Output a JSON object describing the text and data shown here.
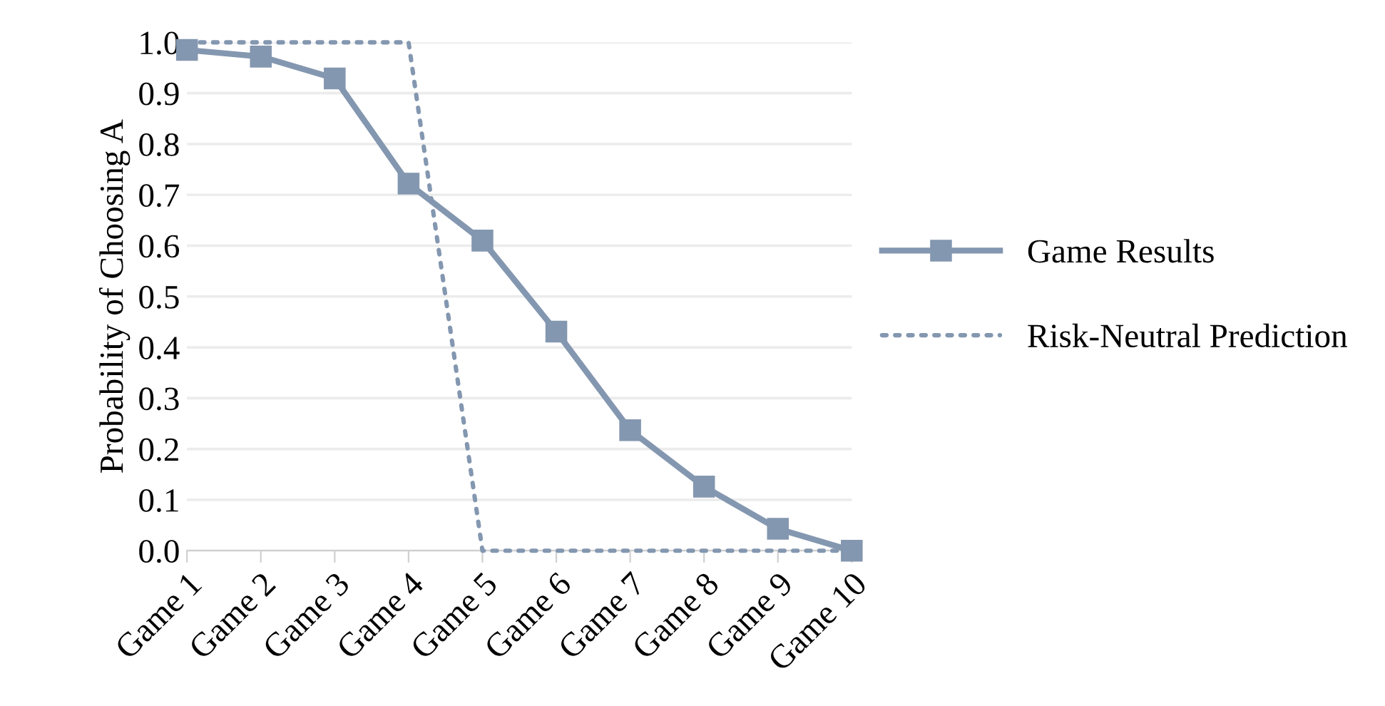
{
  "chart_data": {
    "type": "line",
    "ylabel": "Probability of Choosing A",
    "categories": [
      "Game 1",
      "Game 2",
      "Game 3",
      "Game 4",
      "Game 5",
      "Game 6",
      "Game 7",
      "Game 8",
      "Game 9",
      "Game 10"
    ],
    "series": [
      {
        "name": "Game Results",
        "color": "#8497b0",
        "marker": "square",
        "line_style": "solid",
        "values": [
          0.985,
          0.972,
          0.929,
          0.722,
          0.61,
          0.431,
          0.237,
          0.126,
          0.043,
          0.0
        ]
      },
      {
        "name": "Risk-Neutral Prediction",
        "color": "#8497b0",
        "marker": "none",
        "line_style": "dotted",
        "values": [
          1.0,
          1.0,
          1.0,
          1.0,
          0.0,
          0.0,
          0.0,
          0.0,
          0.0,
          0.0
        ]
      }
    ],
    "ylim": [
      0,
      1.0
    ],
    "yticks": [
      {
        "value": 0,
        "label": "0.0"
      },
      {
        "value": 0.1,
        "label": "0.1"
      },
      {
        "value": 0.2,
        "label": "0.2"
      },
      {
        "value": 0.3,
        "label": "0.3"
      },
      {
        "value": 0.4,
        "label": "0.4"
      },
      {
        "value": 0.5,
        "label": "0.5"
      },
      {
        "value": 0.6,
        "label": "0.6"
      },
      {
        "value": 0.7,
        "label": "0.7"
      },
      {
        "value": 0.8,
        "label": "0.8"
      },
      {
        "value": 0.9,
        "label": "0.9"
      },
      {
        "value": 1.0,
        "label": "1.0"
      }
    ],
    "grid": "y",
    "legend": "right"
  }
}
